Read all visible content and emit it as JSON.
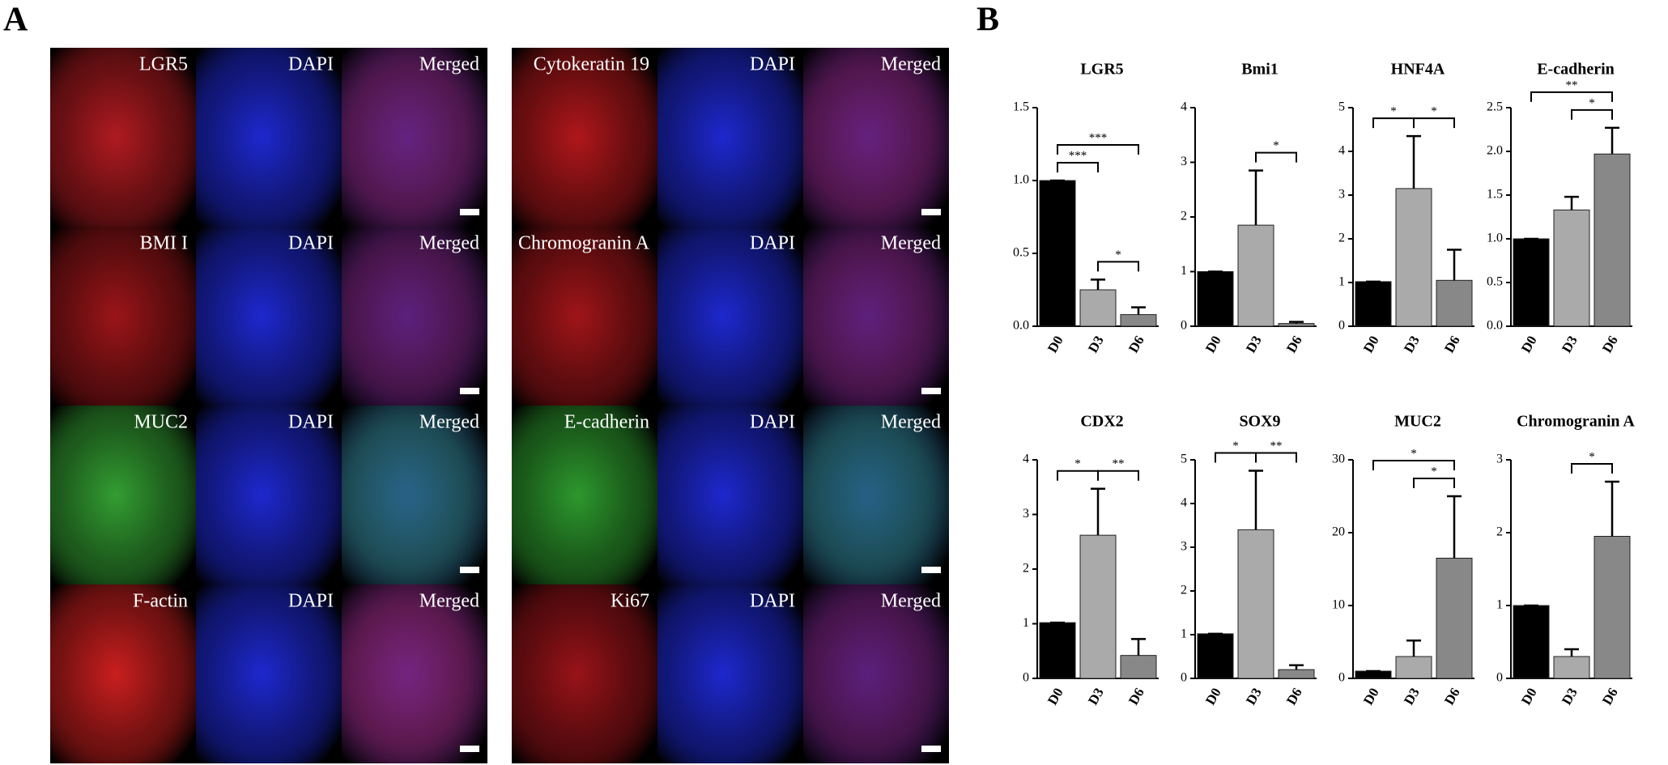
{
  "panel_a": {
    "label": "A",
    "grids": [
      {
        "rows": [
          {
            "labels": [
              "LGR5",
              "DAPI",
              "Merged"
            ],
            "color": "#b81c22"
          },
          {
            "labels": [
              "BMI I",
              "DAPI",
              "Merged"
            ],
            "color": "#a3161a"
          },
          {
            "labels": [
              "MUC2",
              "DAPI",
              "Merged"
            ],
            "color": "#35a534"
          },
          {
            "labels": [
              "F-actin",
              "DAPI",
              "Merged"
            ],
            "color": "#d42020"
          }
        ]
      },
      {
        "rows": [
          {
            "labels": [
              "Cytokeratin 19",
              "DAPI",
              "Merged"
            ],
            "color": "#b8181c"
          },
          {
            "labels": [
              "Chromogranin A",
              "DAPI",
              "Merged"
            ],
            "color": "#a8161a"
          },
          {
            "labels": [
              "E-cadherin",
              "DAPI",
              "Merged"
            ],
            "color": "#2fa02f"
          },
          {
            "labels": [
              "Ki67",
              "DAPI",
              "Merged"
            ],
            "color": "#a0141a"
          }
        ]
      }
    ]
  },
  "panel_b_label": "B",
  "chart_data": [
    {
      "type": "bar",
      "title": "LGR5",
      "categories": [
        "D0",
        "D3",
        "D6"
      ],
      "values": [
        1.0,
        0.25,
        0.08
      ],
      "errors": [
        0,
        0.07,
        0.05
      ],
      "colors": [
        "#000000",
        "#aaaaaa",
        "#888888"
      ],
      "ylim": [
        0,
        1.5
      ],
      "yticks": [
        {
          "value": 0,
          "label": "0.0"
        },
        0.5,
        {
          "value": 1,
          "label": "1.0"
        },
        1.5
      ],
      "significance": [
        {
          "from": "D0",
          "to": "D3",
          "label": "***"
        },
        {
          "from": "D3",
          "to": "D6",
          "label": "*"
        },
        {
          "from": "D0",
          "to": "D6",
          "label": "***"
        }
      ]
    },
    {
      "type": "bar",
      "title": "Bmi1",
      "categories": [
        "D0",
        "D3",
        "D6"
      ],
      "values": [
        1.0,
        1.85,
        0.05
      ],
      "errors": [
        0,
        1.0,
        0.03
      ],
      "colors": [
        "#000000",
        "#aaaaaa",
        "#888888"
      ],
      "ylim": [
        0,
        4
      ],
      "yticks": [
        0,
        1,
        2,
        3,
        4
      ],
      "significance": [
        {
          "from": "D3",
          "to": "D6",
          "label": "*"
        }
      ]
    },
    {
      "type": "bar",
      "title": "HNF4A",
      "categories": [
        "D0",
        "D3",
        "D6"
      ],
      "values": [
        1.02,
        3.15,
        1.05
      ],
      "errors": [
        0,
        1.2,
        0.7
      ],
      "colors": [
        "#000000",
        "#aaaaaa",
        "#888888"
      ],
      "ylim": [
        0,
        5
      ],
      "yticks": [
        0,
        1,
        2,
        3,
        4,
        5
      ],
      "significance": [
        {
          "from": "D0",
          "to": "D3",
          "label": "*"
        },
        {
          "from": "D3",
          "to": "D6",
          "label": "*"
        }
      ]
    },
    {
      "type": "bar",
      "title": "E-cadherin",
      "categories": [
        "D0",
        "D3",
        "D6"
      ],
      "values": [
        1.0,
        1.33,
        1.97
      ],
      "errors": [
        0,
        0.15,
        0.3
      ],
      "colors": [
        "#000000",
        "#aaaaaa",
        "#888888"
      ],
      "ylim": [
        0,
        2.5
      ],
      "yticks": [
        {
          "value": 0,
          "label": "0.0"
        },
        0.5,
        {
          "value": 1,
          "label": "1.0"
        },
        1.5,
        {
          "value": 2,
          "label": "2.0"
        },
        2.5
      ],
      "significance": [
        {
          "from": "D3",
          "to": "D6",
          "label": "*"
        },
        {
          "from": "D0",
          "to": "D6",
          "label": "**"
        }
      ]
    },
    {
      "type": "bar",
      "title": "CDX2",
      "categories": [
        "D0",
        "D3",
        "D6"
      ],
      "values": [
        1.02,
        2.62,
        0.42
      ],
      "errors": [
        0,
        0.85,
        0.3
      ],
      "colors": [
        "#000000",
        "#aaaaaa",
        "#888888"
      ],
      "ylim": [
        0,
        4
      ],
      "yticks": [
        0,
        1,
        2,
        3,
        4
      ],
      "significance": [
        {
          "from": "D0",
          "to": "D3",
          "label": "*"
        },
        {
          "from": "D3",
          "to": "D6",
          "label": "**"
        }
      ]
    },
    {
      "type": "bar",
      "title": "SOX9",
      "categories": [
        "D0",
        "D3",
        "D6"
      ],
      "values": [
        1.02,
        3.4,
        0.2
      ],
      "errors": [
        0,
        1.35,
        0.1
      ],
      "colors": [
        "#000000",
        "#aaaaaa",
        "#888888"
      ],
      "ylim": [
        0,
        5
      ],
      "yticks": [
        0,
        1,
        2,
        3,
        4,
        5
      ],
      "significance": [
        {
          "from": "D0",
          "to": "D3",
          "label": "*"
        },
        {
          "from": "D3",
          "to": "D6",
          "label": "**"
        }
      ]
    },
    {
      "type": "bar",
      "title": "MUC2",
      "categories": [
        "D0",
        "D3",
        "D6"
      ],
      "values": [
        1.0,
        3.0,
        16.5
      ],
      "errors": [
        0,
        2.2,
        8.5
      ],
      "colors": [
        "#000000",
        "#aaaaaa",
        "#888888"
      ],
      "ylim": [
        0,
        30
      ],
      "yticks": [
        0,
        10,
        20,
        30
      ],
      "significance": [
        {
          "from": "D3",
          "to": "D6",
          "label": "*"
        },
        {
          "from": "D0",
          "to": "D6",
          "label": "*"
        }
      ]
    },
    {
      "type": "bar",
      "title": "Chromogranin A",
      "categories": [
        "D0",
        "D3",
        "D6"
      ],
      "values": [
        1.0,
        0.3,
        1.95
      ],
      "errors": [
        0,
        0.1,
        0.75
      ],
      "colors": [
        "#000000",
        "#aaaaaa",
        "#888888"
      ],
      "ylim": [
        0,
        3
      ],
      "yticks": [
        0,
        1,
        2,
        3
      ],
      "significance": [
        {
          "from": "D3",
          "to": "D6",
          "label": "*"
        }
      ]
    }
  ]
}
